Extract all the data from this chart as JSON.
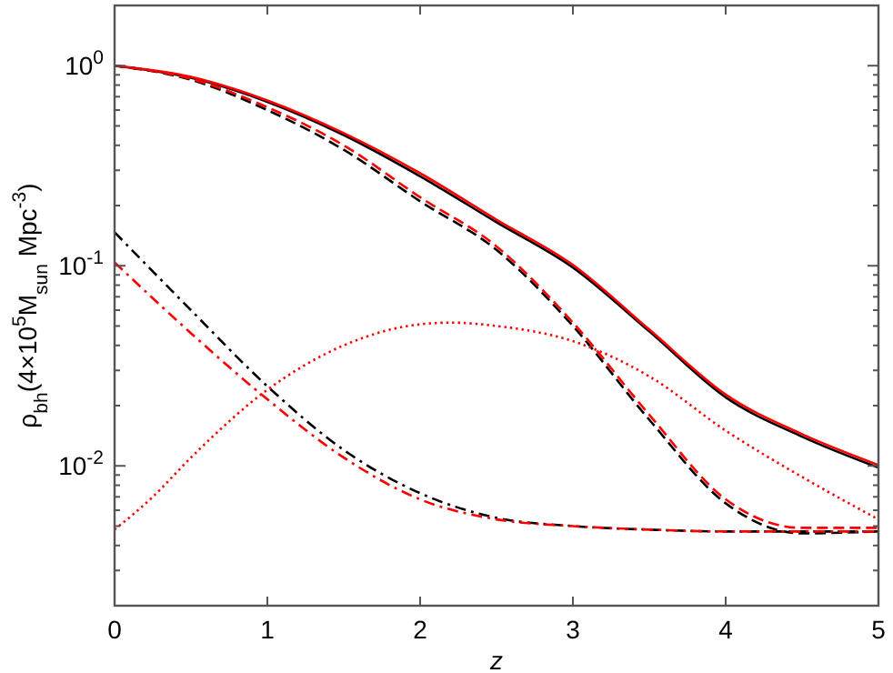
{
  "chart_data": {
    "type": "line",
    "xlabel": "z",
    "ylabel": "ρ$_{bh}$(4×10$^{5}$M$_{sun}$ Mpc$^{-3}$)",
    "log": "y",
    "grid": false,
    "xlim": [
      0,
      5
    ],
    "xticks": [
      0,
      1,
      2,
      3,
      4,
      5
    ],
    "ylim": [
      0.002,
      2
    ],
    "yticks": [
      {
        "value": 0.002,
        "label": null
      },
      {
        "value": 0.003,
        "label": null
      },
      {
        "value": 0.004,
        "label": null
      },
      {
        "value": 0.005,
        "label": null
      },
      {
        "value": 0.006,
        "label": null
      },
      {
        "value": 0.007,
        "label": null
      },
      {
        "value": 0.008,
        "label": null
      },
      {
        "value": 0.009,
        "label": null
      },
      {
        "value": 0.01,
        "label": "10$^{-2}$"
      },
      {
        "value": 0.02,
        "label": null
      },
      {
        "value": 0.03,
        "label": null
      },
      {
        "value": 0.04,
        "label": null
      },
      {
        "value": 0.05,
        "label": null
      },
      {
        "value": 0.06,
        "label": null
      },
      {
        "value": 0.07,
        "label": null
      },
      {
        "value": 0.08,
        "label": null
      },
      {
        "value": 0.09,
        "label": null
      },
      {
        "value": 0.1,
        "label": "10$^{-1}$"
      },
      {
        "value": 0.2,
        "label": null
      },
      {
        "value": 0.3,
        "label": null
      },
      {
        "value": 0.4,
        "label": null
      },
      {
        "value": 0.5,
        "label": null
      },
      {
        "value": 0.6,
        "label": null
      },
      {
        "value": 0.7,
        "label": null
      },
      {
        "value": 0.8,
        "label": null
      },
      {
        "value": 0.9,
        "label": null
      },
      {
        "value": 1,
        "label": "10$^{0}$"
      },
      {
        "value": 2,
        "label": null
      }
    ],
    "series": [
      {
        "color": "#000000",
        "line_style": "solid",
        "x": [
          0,
          0.5,
          1,
          1.5,
          2,
          2.5,
          3,
          3.5,
          4,
          4.5,
          5
        ],
        "values": [
          1.0,
          0.87,
          0.66,
          0.45,
          0.28,
          0.165,
          0.098,
          0.047,
          0.022,
          0.014,
          0.0098
        ]
      },
      {
        "color": "#ff0000",
        "line_style": "solid",
        "x": [
          0,
          0.5,
          1,
          1.5,
          2,
          2.5,
          3,
          3.5,
          4,
          4.5,
          5
        ],
        "values": [
          1.0,
          0.88,
          0.67,
          0.46,
          0.29,
          0.17,
          0.101,
          0.048,
          0.0227,
          0.0144,
          0.0101
        ]
      },
      {
        "color": "#000000",
        "line_style": "dashed",
        "x": [
          0,
          0.5,
          1,
          1.5,
          2,
          2.5,
          3,
          3.5,
          4,
          4.5,
          5
        ],
        "values": [
          1.0,
          0.85,
          0.6,
          0.38,
          0.21,
          0.12,
          0.05,
          0.017,
          0.0065,
          0.0046,
          0.0047
        ]
      },
      {
        "color": "#ff0000",
        "line_style": "dashed",
        "x": [
          0,
          0.5,
          1,
          1.5,
          2,
          2.5,
          3,
          3.5,
          4,
          4.5,
          5
        ],
        "values": [
          1.0,
          0.86,
          0.62,
          0.4,
          0.22,
          0.125,
          0.052,
          0.018,
          0.0068,
          0.0049,
          0.0049
        ]
      },
      {
        "color": "#000000",
        "line_style": "dashdot",
        "x": [
          0,
          0.5,
          1,
          1.5,
          2,
          2.5,
          3,
          3.5,
          4,
          4.5,
          5
        ],
        "values": [
          0.147,
          0.06,
          0.025,
          0.012,
          0.0073,
          0.0055,
          0.005,
          0.0048,
          0.0047,
          0.0047,
          0.0047
        ]
      },
      {
        "color": "#ff0000",
        "line_style": "dashdot",
        "x": [
          0,
          0.5,
          1,
          1.5,
          2,
          2.5,
          3,
          3.5,
          4,
          4.5,
          5
        ],
        "values": [
          0.104,
          0.046,
          0.0215,
          0.011,
          0.0068,
          0.0054,
          0.005,
          0.0048,
          0.0047,
          0.0047,
          0.0047
        ]
      },
      {
        "color": "#ff0000",
        "line_style": "dotted",
        "x": [
          0,
          0.25,
          0.5,
          1,
          1.5,
          2,
          2.2,
          2.5,
          3,
          3.5,
          4,
          4.5,
          5
        ],
        "values": [
          0.0048,
          0.007,
          0.011,
          0.024,
          0.04,
          0.051,
          0.052,
          0.05,
          0.042,
          0.028,
          0.015,
          0.0088,
          0.0054
        ]
      }
    ]
  }
}
